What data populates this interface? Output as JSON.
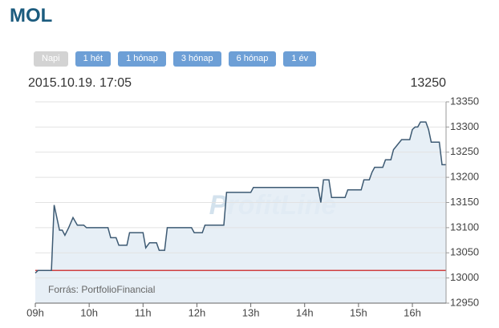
{
  "header": {
    "title": "MOL",
    "buttons": [
      "Napi",
      "1 hét",
      "1 hónap",
      "3 hónap",
      "6 hónap",
      "1 év"
    ],
    "datetime": "2015.10.19. 17:05",
    "last_price": "13250"
  },
  "chart_data": {
    "type": "line",
    "color": "#3d5a73",
    "area_color": "#e3ecf5",
    "watermark": "ProfitLine",
    "source": "Forrás: PortfolioFinancial",
    "reference_line": {
      "value": 13015,
      "color": "#d04040"
    },
    "x": [
      9.0,
      9.05,
      9.3,
      9.35,
      9.45,
      9.5,
      9.55,
      9.62,
      9.7,
      9.78,
      9.9,
      9.95,
      10.35,
      10.4,
      10.5,
      10.55,
      10.7,
      10.75,
      11.0,
      11.05,
      11.12,
      11.25,
      11.3,
      11.4,
      11.45,
      11.9,
      11.95,
      12.1,
      12.15,
      12.5,
      12.55,
      13.0,
      13.05,
      14.25,
      14.3,
      14.35,
      14.45,
      14.5,
      14.75,
      14.8,
      15.05,
      15.1,
      15.2,
      15.25,
      15.3,
      15.45,
      15.5,
      15.6,
      15.65,
      15.8,
      15.95,
      16.0,
      16.05,
      16.1,
      16.15,
      16.25,
      16.3,
      16.35,
      16.5,
      16.55,
      16.625
    ],
    "values": [
      13010,
      13015,
      13015,
      13145,
      13095,
      13095,
      13085,
      13100,
      13120,
      13105,
      13105,
      13100,
      13100,
      13080,
      13080,
      13065,
      13065,
      13090,
      13090,
      13060,
      13070,
      13070,
      13055,
      13055,
      13100,
      13100,
      13090,
      13090,
      13105,
      13105,
      13170,
      13170,
      13180,
      13180,
      13150,
      13195,
      13195,
      13160,
      13160,
      13175,
      13175,
      13195,
      13195,
      13210,
      13220,
      13220,
      13235,
      13235,
      13255,
      13275,
      13275,
      13295,
      13300,
      13300,
      13310,
      13310,
      13295,
      13270,
      13270,
      13225,
      13225
    ],
    "xlim": [
      9,
      16.625
    ],
    "xticks": [
      {
        "value": 9,
        "label": "09h"
      },
      {
        "value": 10,
        "label": "10h"
      },
      {
        "value": 11,
        "label": "11h"
      },
      {
        "value": 12,
        "label": "12h"
      },
      {
        "value": 13,
        "label": "13h"
      },
      {
        "value": 14,
        "label": "14h"
      },
      {
        "value": 15,
        "label": "15h"
      },
      {
        "value": 16,
        "label": "16h"
      }
    ],
    "ylim": [
      12950,
      13350
    ],
    "yticks": [
      12950,
      13000,
      13050,
      13100,
      13150,
      13200,
      13250,
      13300,
      13350
    ],
    "grid": true
  }
}
